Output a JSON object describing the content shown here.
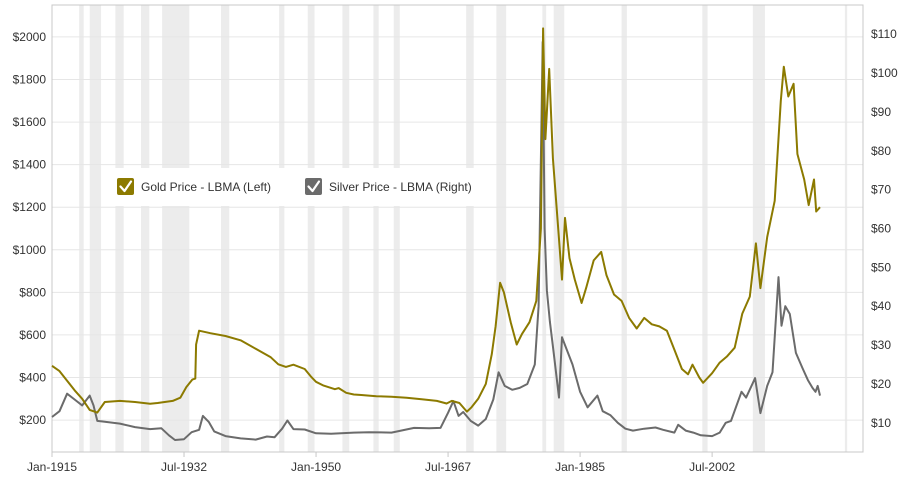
{
  "chart_data": {
    "type": "line",
    "title": "",
    "xlabel": "",
    "ylabel_left": "",
    "ylabel_right": "",
    "xlim": [
      1915,
      2022.5
    ],
    "ylim_left": [
      50,
      2150
    ],
    "ylim_right": [
      2.5,
      117.5
    ],
    "grid": true,
    "legend_position": "top-left",
    "x_ticks": [
      {
        "x": 1915,
        "label": "Jan-1915"
      },
      {
        "x": 1932.5,
        "label": "Jul-1932"
      },
      {
        "x": 1950,
        "label": "Jan-1950"
      },
      {
        "x": 1967.5,
        "label": "Jul-1967"
      },
      {
        "x": 1985,
        "label": "Jan-1985"
      },
      {
        "x": 2002.5,
        "label": "Jul-2002"
      }
    ],
    "y_ticks_left": [
      {
        "v": 200,
        "label": "$200"
      },
      {
        "v": 400,
        "label": "$400"
      },
      {
        "v": 600,
        "label": "$600"
      },
      {
        "v": 800,
        "label": "$800"
      },
      {
        "v": 1000,
        "label": "$1000"
      },
      {
        "v": 1200,
        "label": "$1200"
      },
      {
        "v": 1400,
        "label": "$1400"
      },
      {
        "v": 1600,
        "label": "$1600"
      },
      {
        "v": 1800,
        "label": "$1800"
      },
      {
        "v": 2000,
        "label": "$2000"
      }
    ],
    "y_ticks_right": [
      {
        "v": 10,
        "label": "$10"
      },
      {
        "v": 20,
        "label": "$20"
      },
      {
        "v": 30,
        "label": "$30"
      },
      {
        "v": 40,
        "label": "$40"
      },
      {
        "v": 50,
        "label": "$50"
      },
      {
        "v": 60,
        "label": "$60"
      },
      {
        "v": 70,
        "label": "$70"
      },
      {
        "v": 80,
        "label": "$80"
      },
      {
        "v": 90,
        "label": "$90"
      },
      {
        "v": 100,
        "label": "$100"
      },
      {
        "v": 110,
        "label": "$110"
      }
    ],
    "recessions": [
      [
        1918.6,
        1919.2
      ],
      [
        1920.0,
        1921.5
      ],
      [
        1923.4,
        1924.5
      ],
      [
        1926.8,
        1927.9
      ],
      [
        1929.6,
        1933.2
      ],
      [
        1937.4,
        1938.5
      ],
      [
        1945.1,
        1945.8
      ],
      [
        1948.9,
        1949.8
      ],
      [
        1953.5,
        1954.4
      ],
      [
        1957.6,
        1958.3
      ],
      [
        1960.3,
        1961.1
      ],
      [
        1969.9,
        1970.9
      ],
      [
        1973.9,
        1975.2
      ],
      [
        1980.0,
        1980.5
      ],
      [
        1981.5,
        1982.9
      ],
      [
        1990.5,
        1991.2
      ],
      [
        2001.2,
        2001.9
      ],
      [
        2007.9,
        2009.5
      ],
      [
        2020.1,
        2020.4
      ]
    ],
    "series": [
      {
        "name": "Gold Price - LBMA (Left)",
        "axis": "left",
        "color": "#8c7a00",
        "points": [
          [
            1915,
            455
          ],
          [
            1916,
            430
          ],
          [
            1917,
            385
          ],
          [
            1918,
            340
          ],
          [
            1919,
            300
          ],
          [
            1920,
            248
          ],
          [
            1921,
            235
          ],
          [
            1922,
            285
          ],
          [
            1924,
            290
          ],
          [
            1926,
            285
          ],
          [
            1928,
            277
          ],
          [
            1929,
            280
          ],
          [
            1931,
            290
          ],
          [
            1932,
            305
          ],
          [
            1932.8,
            355
          ],
          [
            1933.6,
            390
          ],
          [
            1934.0,
            395
          ],
          [
            1934.1,
            555
          ],
          [
            1934.5,
            620
          ],
          [
            1936,
            608
          ],
          [
            1938,
            595
          ],
          [
            1940,
            575
          ],
          [
            1942,
            535
          ],
          [
            1944,
            495
          ],
          [
            1945,
            462
          ],
          [
            1946,
            450
          ],
          [
            1947,
            460
          ],
          [
            1948.5,
            440
          ],
          [
            1949.3,
            405
          ],
          [
            1950,
            380
          ],
          [
            1951,
            362
          ],
          [
            1952.5,
            345
          ],
          [
            1953,
            350
          ],
          [
            1954,
            328
          ],
          [
            1955,
            320
          ],
          [
            1956,
            318
          ],
          [
            1958,
            312
          ],
          [
            1960,
            310
          ],
          [
            1962,
            305
          ],
          [
            1964,
            298
          ],
          [
            1966,
            290
          ],
          [
            1967.3,
            278
          ],
          [
            1968,
            290
          ],
          [
            1969,
            280
          ],
          [
            1970,
            240
          ],
          [
            1970.6,
            260
          ],
          [
            1971.5,
            300
          ],
          [
            1972.5,
            370
          ],
          [
            1973.3,
            510
          ],
          [
            1973.8,
            640
          ],
          [
            1974.4,
            845
          ],
          [
            1974.9,
            800
          ],
          [
            1975.8,
            660
          ],
          [
            1976.6,
            555
          ],
          [
            1977.3,
            605
          ],
          [
            1978.3,
            660
          ],
          [
            1979.2,
            760
          ],
          [
            1979.8,
            1100
          ],
          [
            1980.1,
            2040
          ],
          [
            1980.4,
            1520
          ],
          [
            1980.9,
            1850
          ],
          [
            1981.4,
            1430
          ],
          [
            1982.2,
            1050
          ],
          [
            1982.6,
            860
          ],
          [
            1983.0,
            1150
          ],
          [
            1983.6,
            960
          ],
          [
            1984.3,
            860
          ],
          [
            1985.2,
            750
          ],
          [
            1985.8,
            820
          ],
          [
            1986.8,
            950
          ],
          [
            1987.8,
            990
          ],
          [
            1988.5,
            880
          ],
          [
            1989.5,
            790
          ],
          [
            1990.5,
            760
          ],
          [
            1991.5,
            680
          ],
          [
            1992.5,
            630
          ],
          [
            1993.5,
            680
          ],
          [
            1994.5,
            650
          ],
          [
            1995.5,
            640
          ],
          [
            1996.5,
            620
          ],
          [
            1997.5,
            530
          ],
          [
            1998.5,
            440
          ],
          [
            1999.3,
            415
          ],
          [
            1999.9,
            460
          ],
          [
            2000.8,
            400
          ],
          [
            2001.3,
            375
          ],
          [
            2002.5,
            420
          ],
          [
            2003.5,
            470
          ],
          [
            2004.5,
            500
          ],
          [
            2005.5,
            540
          ],
          [
            2006.5,
            700
          ],
          [
            2007.5,
            780
          ],
          [
            2008.3,
            1030
          ],
          [
            2008.9,
            820
          ],
          [
            2009.8,
            1060
          ],
          [
            2010.8,
            1230
          ],
          [
            2011.6,
            1700
          ],
          [
            2012.0,
            1860
          ],
          [
            2012.6,
            1720
          ],
          [
            2013.3,
            1780
          ],
          [
            2013.8,
            1450
          ],
          [
            2014.7,
            1330
          ],
          [
            2015.3,
            1210
          ],
          [
            2016.0,
            1330
          ],
          [
            2016.3,
            1180
          ],
          [
            2016.8,
            1200
          ]
        ]
      },
      {
        "name": "Silver Price - LBMA (Right)",
        "axis": "right",
        "color": "#6b6b6b",
        "points": [
          [
            1915,
            11.5
          ],
          [
            1916,
            13.0
          ],
          [
            1917,
            17.5
          ],
          [
            1918,
            16.0
          ],
          [
            1919,
            14.5
          ],
          [
            1920,
            17.0
          ],
          [
            1920.5,
            14.5
          ],
          [
            1921,
            10.5
          ],
          [
            1922,
            10.3
          ],
          [
            1924,
            9.8
          ],
          [
            1926,
            8.9
          ],
          [
            1928,
            8.4
          ],
          [
            1929.5,
            8.6
          ],
          [
            1930.5,
            6.8
          ],
          [
            1931.3,
            5.6
          ],
          [
            1932.5,
            5.8
          ],
          [
            1933.5,
            7.6
          ],
          [
            1934.5,
            8.2
          ],
          [
            1935,
            11.8
          ],
          [
            1935.8,
            10.2
          ],
          [
            1936.5,
            7.8
          ],
          [
            1938,
            6.6
          ],
          [
            1940,
            6.0
          ],
          [
            1942,
            5.7
          ],
          [
            1943.5,
            6.5
          ],
          [
            1944.5,
            6.3
          ],
          [
            1945.5,
            8.5
          ],
          [
            1946.2,
            10.6
          ],
          [
            1947,
            8.4
          ],
          [
            1948.5,
            8.3
          ],
          [
            1950,
            7.3
          ],
          [
            1952,
            7.2
          ],
          [
            1955,
            7.5
          ],
          [
            1957,
            7.6
          ],
          [
            1960,
            7.5
          ],
          [
            1963,
            8.7
          ],
          [
            1965,
            8.6
          ],
          [
            1966.5,
            8.7
          ],
          [
            1967.5,
            12.6
          ],
          [
            1968.2,
            15.6
          ],
          [
            1968.9,
            11.8
          ],
          [
            1969.5,
            12.8
          ],
          [
            1970.5,
            10.5
          ],
          [
            1971.5,
            9.3
          ],
          [
            1972.5,
            11.0
          ],
          [
            1973.5,
            16.0
          ],
          [
            1974.2,
            23.0
          ],
          [
            1975,
            19.5
          ],
          [
            1976,
            18.5
          ],
          [
            1977,
            19.0
          ],
          [
            1978,
            20.0
          ],
          [
            1979,
            25.0
          ],
          [
            1979.5,
            40.0
          ],
          [
            1980.05,
            108
          ],
          [
            1980.3,
            60
          ],
          [
            1980.6,
            44
          ],
          [
            1981,
            36
          ],
          [
            1981.5,
            28
          ],
          [
            1982.2,
            16.5
          ],
          [
            1982.6,
            32
          ],
          [
            1983.2,
            29
          ],
          [
            1984.0,
            25
          ],
          [
            1985.0,
            18
          ],
          [
            1986.0,
            14
          ],
          [
            1987.3,
            17
          ],
          [
            1988.0,
            13
          ],
          [
            1989.0,
            12
          ],
          [
            1990.0,
            10
          ],
          [
            1991.0,
            8.5
          ],
          [
            1992.0,
            8.0
          ],
          [
            1993.5,
            8.5
          ],
          [
            1995.0,
            8.8
          ],
          [
            1996.0,
            8.2
          ],
          [
            1997.5,
            7.5
          ],
          [
            1998.0,
            9.5
          ],
          [
            1999.0,
            8.0
          ],
          [
            2000.0,
            7.5
          ],
          [
            2001.0,
            6.8
          ],
          [
            2002.5,
            6.6
          ],
          [
            2003.5,
            7.5
          ],
          [
            2004.3,
            10.0
          ],
          [
            2005.0,
            10.5
          ],
          [
            2006.4,
            18.0
          ],
          [
            2007.0,
            16.5
          ],
          [
            2008.2,
            21.5
          ],
          [
            2008.9,
            12.5
          ],
          [
            2009.8,
            19.5
          ],
          [
            2010.5,
            23.0
          ],
          [
            2011.3,
            47.5
          ],
          [
            2011.7,
            35.0
          ],
          [
            2012.2,
            40.0
          ],
          [
            2012.8,
            38.0
          ],
          [
            2013.6,
            28.0
          ],
          [
            2014.5,
            24.0
          ],
          [
            2015.2,
            21.0
          ],
          [
            2015.8,
            19.0
          ],
          [
            2016.2,
            18.0
          ],
          [
            2016.5,
            19.5
          ],
          [
            2016.8,
            17.0
          ]
        ]
      }
    ]
  }
}
